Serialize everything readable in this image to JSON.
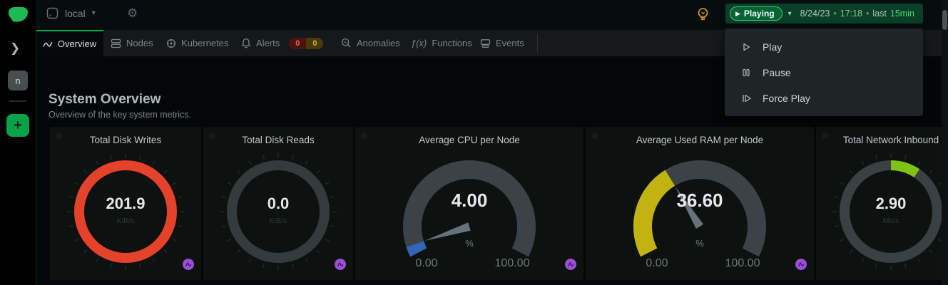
{
  "sidebar": {
    "space_initial": "n",
    "add_label": "+",
    "collapse_glyph": "❯"
  },
  "header": {
    "node_name": "local",
    "chevron_glyph": "▾",
    "gear_glyph": "⚙"
  },
  "timebar": {
    "status": "Playing",
    "play_glyph": "▶",
    "chevron_glyph": "▾",
    "date": "8/24/23",
    "time": "17:18",
    "sep": "•",
    "last_label": "last",
    "range": "15min"
  },
  "menu": {
    "items": [
      {
        "label": "Play"
      },
      {
        "label": "Pause"
      },
      {
        "label": "Force Play"
      }
    ]
  },
  "tabs": {
    "overview": "Overview",
    "nodes": "Nodes",
    "kubernetes": "Kubernetes",
    "alerts": "Alerts",
    "alert_badge_critical": "0",
    "alert_badge_warning": "0",
    "anomalies": "Anomalies",
    "functions": "Functions",
    "functions_icon": "ƒ(x)",
    "events": "Events"
  },
  "page": {
    "title": "System Overview",
    "subtitle": "Overview of the key system metrics."
  },
  "charts": [
    {
      "type": "easypie-circle",
      "title": "Total Disk Writes",
      "value": "201.9",
      "unit": "KiB/s",
      "fill_percent": 100,
      "color": "#e5422c"
    },
    {
      "type": "easypie-circle",
      "title": "Total Disk Reads",
      "value": "0.0",
      "unit": "KiB/s",
      "fill_percent": 0,
      "color": "#343b3c"
    },
    {
      "type": "gauge",
      "title": "Average CPU per Node",
      "value": "4.00",
      "unit": "%",
      "min": "0.00",
      "max": "100.00",
      "percent": 4,
      "color": "#3366bb"
    },
    {
      "type": "gauge",
      "title": "Average Used RAM per Node",
      "value": "36.60",
      "unit": "%",
      "min": "0.00",
      "max": "100.00",
      "percent": 36.6,
      "color": "#c3b310"
    },
    {
      "type": "easypie-circle",
      "title": "Total Network Inbound",
      "value": "2.90",
      "unit": "Mb/s",
      "fill_percent": 12,
      "color": "#7fc214"
    }
  ],
  "colors": {
    "accent_green": "#00ab44",
    "anomaly_purple": "#9b4fd6",
    "status_bar_green": "#0c3f28"
  }
}
